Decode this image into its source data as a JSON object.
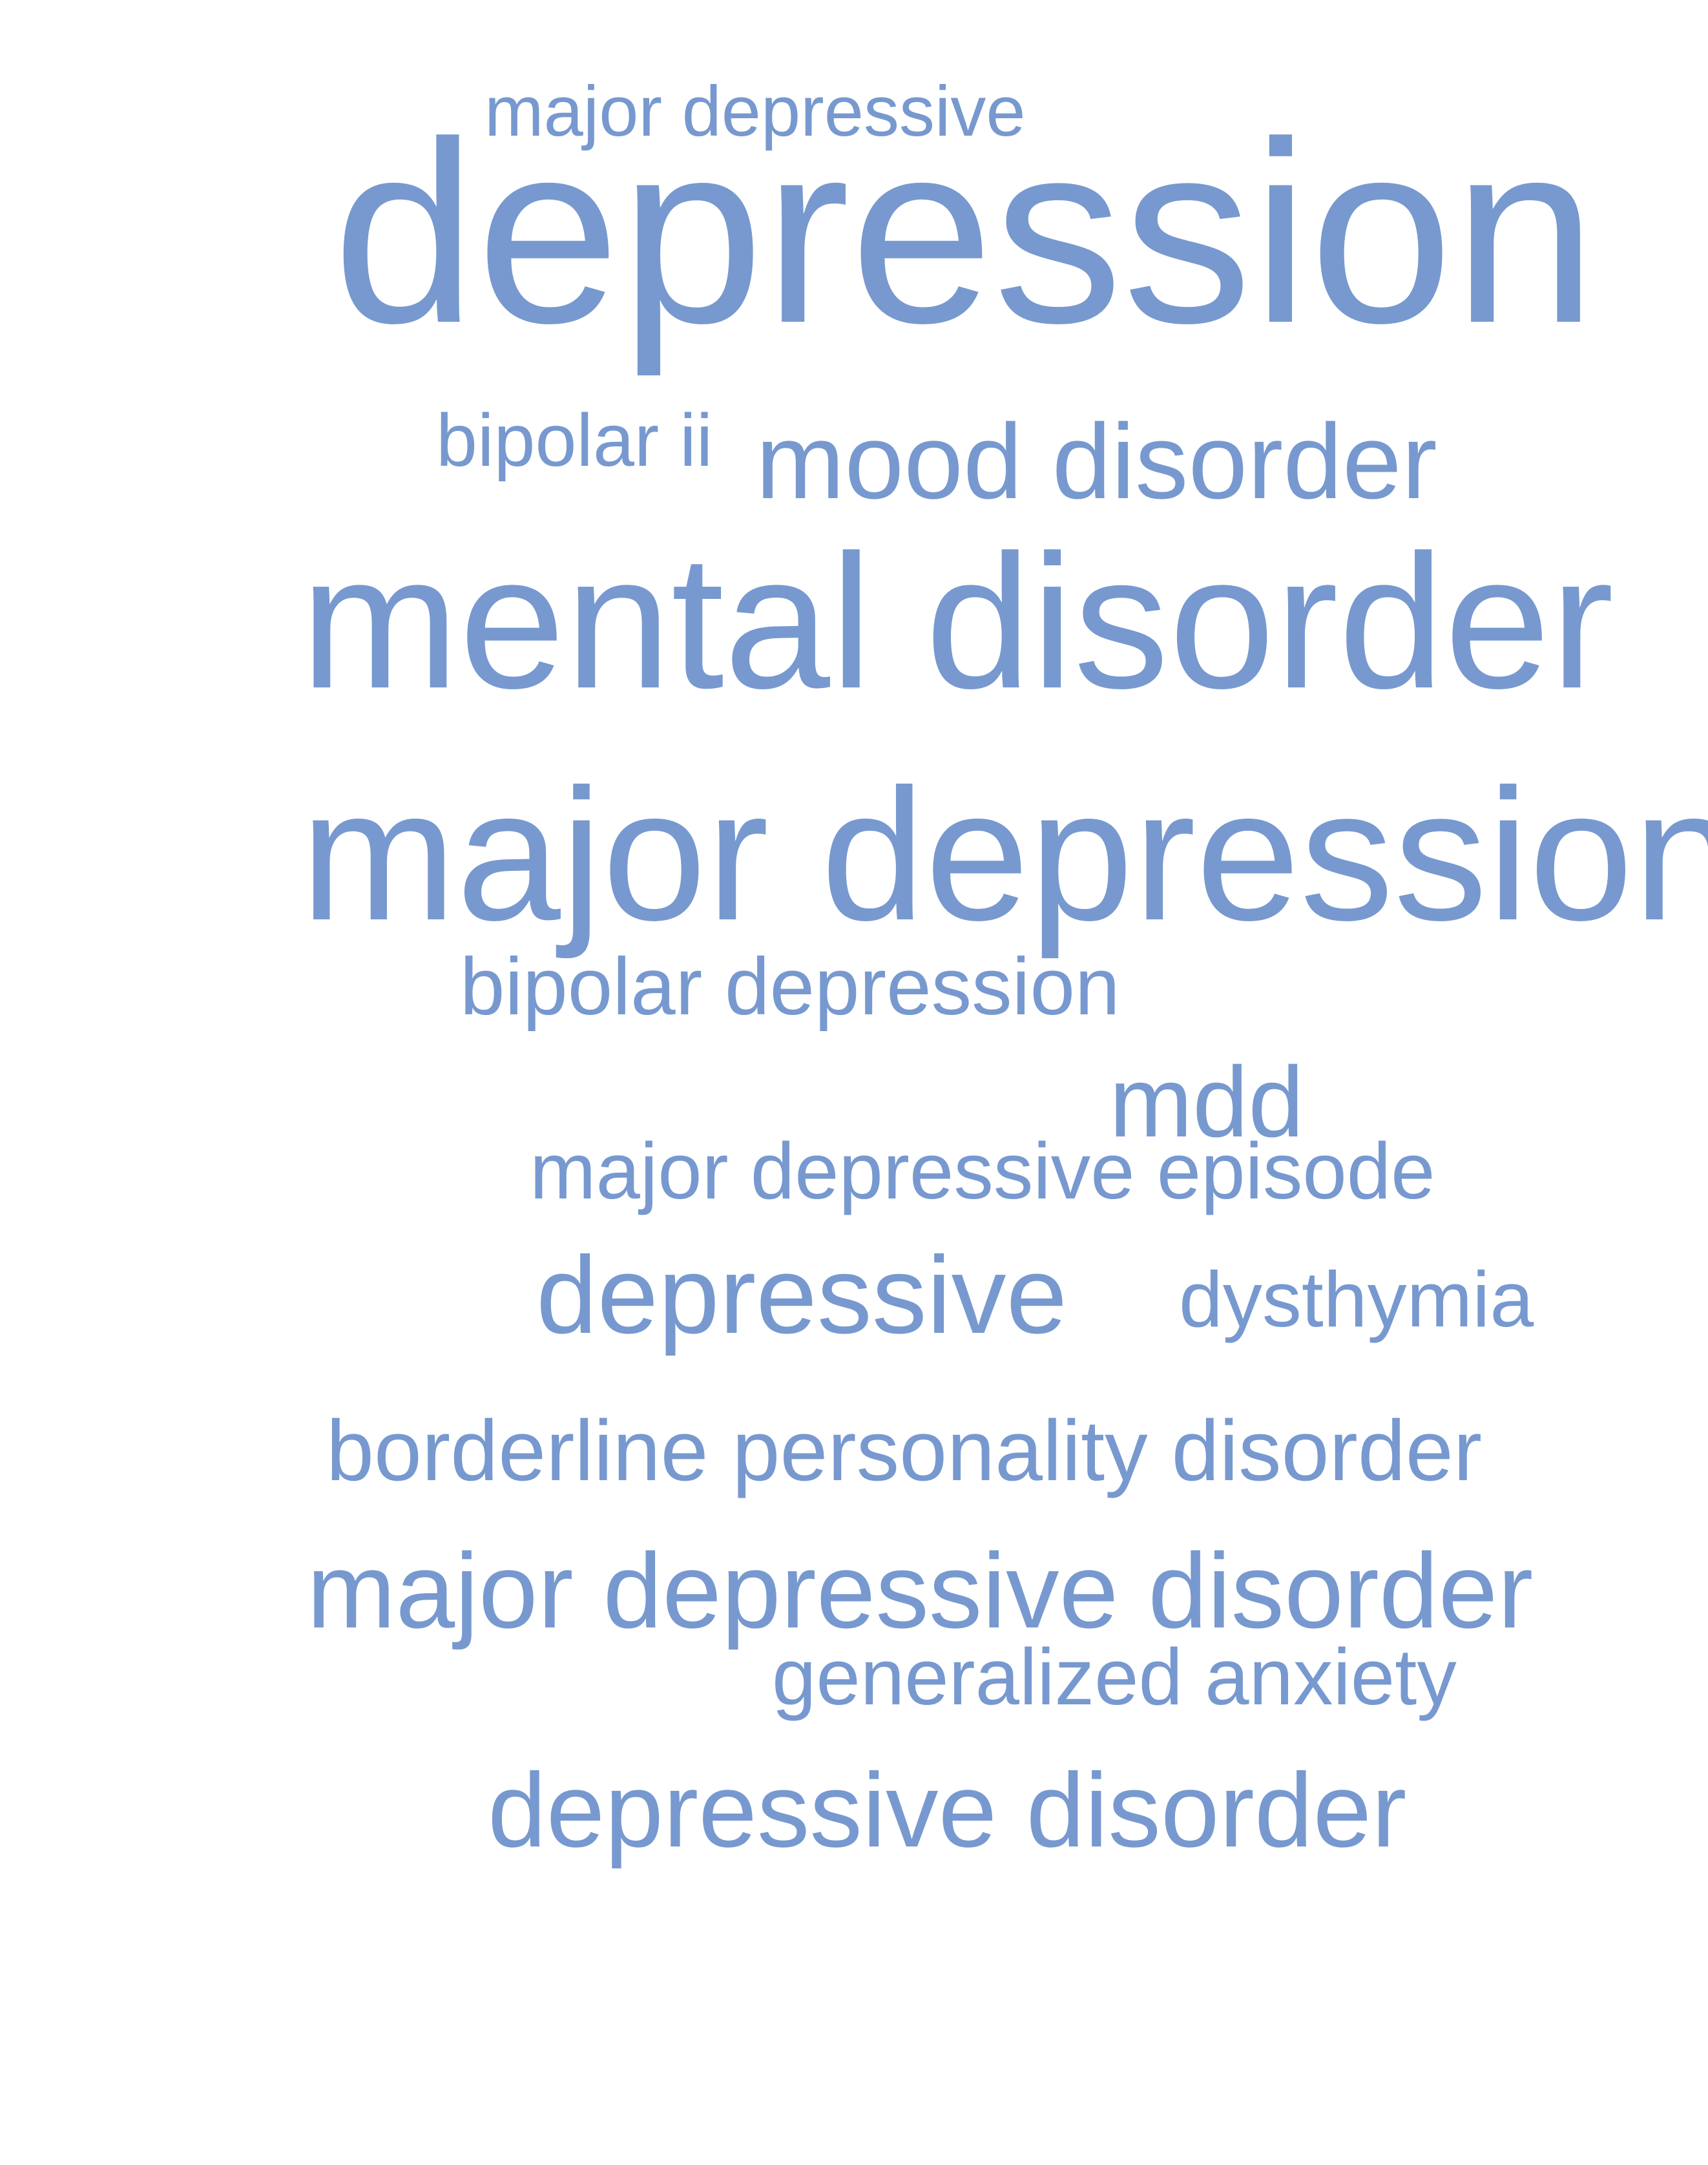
{
  "colors": {
    "background": "#ffffff",
    "word": "#7799cf"
  },
  "word_cloud": {
    "words": [
      "major depressive",
      "depression",
      "bipolar ii",
      "mood disorder",
      "mental disorder",
      "major depression",
      "bipolar depression",
      "mdd",
      "major depressive episode",
      "depressive",
      "dysthymia",
      "borderline personality disorder",
      "major depressive disorder",
      "generalized anxiety",
      "depressive disorder"
    ]
  }
}
